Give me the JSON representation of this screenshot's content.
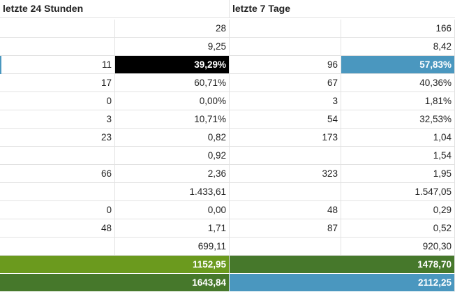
{
  "header": {
    "col_24h": "letzte 24 Stunden",
    "col_7d": "letzte 7 Tage"
  },
  "rows": [
    {
      "a": "",
      "b": "28",
      "c": "",
      "d": "166"
    },
    {
      "a": "",
      "b": "9,25",
      "c": "",
      "d": "8,42"
    },
    {
      "a": "11",
      "b": "39,29%",
      "c": "96",
      "d": "57,83%"
    },
    {
      "a": "17",
      "b": "60,71%",
      "c": "67",
      "d": "40,36%"
    },
    {
      "a": "0",
      "b": "0,00%",
      "c": "3",
      "d": "1,81%"
    },
    {
      "a": "3",
      "b": "10,71%",
      "c": "54",
      "d": "32,53%"
    },
    {
      "a": "23",
      "b": "0,82",
      "c": "173",
      "d": "1,04"
    },
    {
      "a": "",
      "b": "0,92",
      "c": "",
      "d": "1,54"
    },
    {
      "a": "66",
      "b": "2,36",
      "c": "323",
      "d": "1,95"
    },
    {
      "a": "",
      "b": "1.433,61",
      "c": "",
      "d": "1.547,05"
    },
    {
      "a": "0",
      "b": "0,00",
      "c": "48",
      "d": "0,29"
    },
    {
      "a": "48",
      "b": "1,71",
      "c": "87",
      "d": "0,52"
    },
    {
      "a": "",
      "b": "699,11",
      "c": "",
      "d": "920,30"
    }
  ],
  "totals": {
    "row1_24h": "1152,95",
    "row1_7d": "1478,70",
    "row2_24h": "1643,84",
    "row2_7d": "2112,25"
  },
  "colors": {
    "black_highlight": "#000000",
    "blue_highlight": "#4a97bf",
    "light_green": "#6b9a1e",
    "dark_green": "#46782b"
  }
}
